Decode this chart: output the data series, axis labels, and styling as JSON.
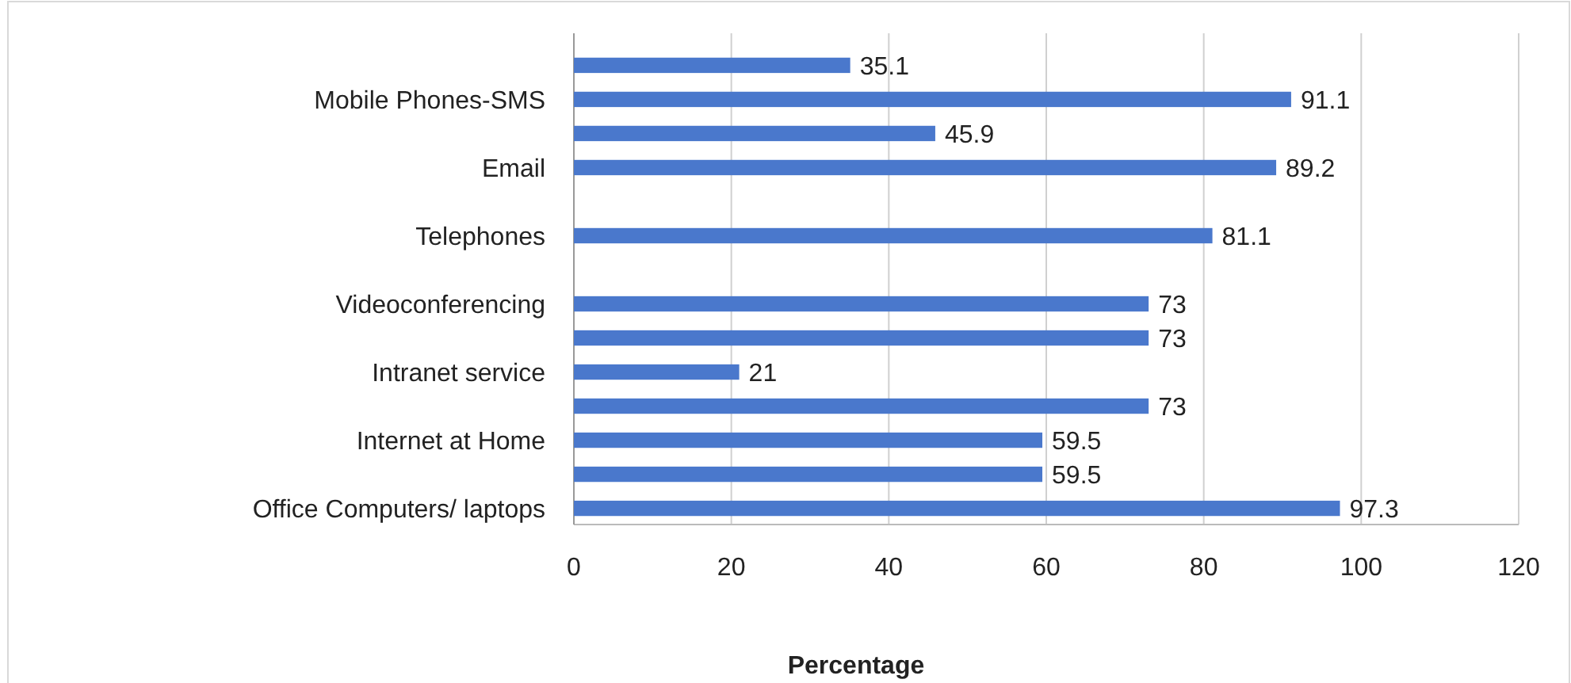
{
  "chart_data": {
    "type": "bar",
    "orientation": "horizontal",
    "xlabel": "Percentage",
    "categories": [
      null,
      "Mobile Phones-SMS",
      null,
      "Email",
      null,
      "Telephones",
      null,
      "Videoconferencing",
      null,
      "Intranet service",
      null,
      "Internet at Home",
      null,
      "Office Computers/ laptops"
    ],
    "values": [
      35.1,
      91.1,
      45.9,
      89.2,
      null,
      81.1,
      null,
      73,
      73,
      21,
      73,
      59.5,
      59.5,
      97.3
    ],
    "color": "#4a78cc",
    "xlim": [
      0,
      120
    ],
    "xticks": [
      0,
      20,
      40,
      60,
      80,
      100,
      120
    ],
    "grid": "x",
    "data_labels": true
  }
}
